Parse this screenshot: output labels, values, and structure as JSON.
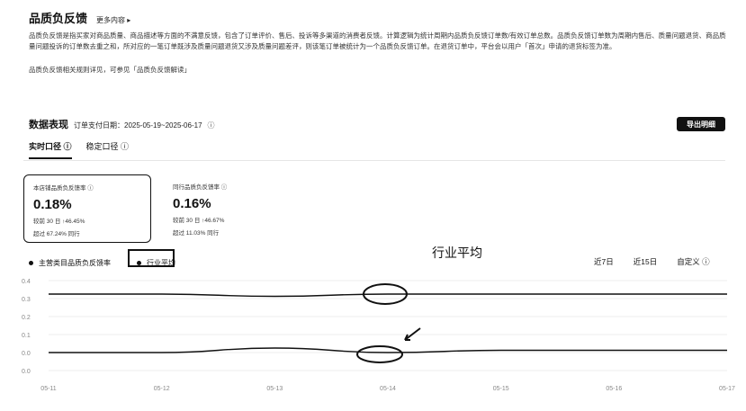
{
  "header": {
    "title": "品质负反馈",
    "more_label": "更多内容 ▸"
  },
  "description": "品质负反馈是指买家对商品质量、商品描述等方面的不满意反馈，包含了订单评价、售后、投诉等多渠道的消费者反馈。计算逻辑为统计周期内品质负反馈订单数/有效订单总数。品质负反馈订单数为周期内售后、质量问题退货、商品质量问题投诉的订单数去重之和，所对应的一笔订单既涉及质量问题退货又涉及质量问题差评，则该笔订单被统计为一个品质负反馈订单。在退货订单中，平台会以用户「首次」申请的退货标签为准。",
  "description_note": "品质负反馈相关规则详见，可参见「品质负反馈解读」",
  "section": {
    "title": "数据表现",
    "date_label": "订单支付日期：2025-05-19~2025-06-17",
    "info_icon": "ⓘ",
    "export_label": "导出明细"
  },
  "tabs": [
    {
      "label": "实时口径 ⓘ",
      "active": true
    },
    {
      "label": "稳定口径 ⓘ",
      "active": false
    }
  ],
  "cards": [
    {
      "label": "本店铺品质负反馈率 ⓘ",
      "value": "0.18%",
      "line1": "较前 30 日 ↑46.45%",
      "line2": "超过 67.24% 同行",
      "selected": true
    },
    {
      "label": "同行品质负反馈率 ⓘ",
      "value": "0.16%",
      "line1": "较前 30 日 ↑46.67%",
      "line2": "超过 11.03% 同行",
      "selected": false
    }
  ],
  "legend": [
    {
      "label": "主营类目品质负反馈率"
    },
    {
      "label": "行业平均"
    }
  ],
  "annotation_text": "行业平均",
  "ranges": [
    "近7日",
    "近15日",
    "自定义 ⓘ"
  ],
  "chart_data": {
    "type": "line",
    "x": [
      "05-11",
      "05-12",
      "05-13",
      "05-14",
      "05-15",
      "05-16",
      "05-17"
    ],
    "yticks": [
      "0.4",
      "0.3",
      "0.2",
      "0.1",
      "0.0",
      "0.0"
    ],
    "series": [
      {
        "name": "主营类目品质负反馈率",
        "values": [
          0.34,
          0.34,
          0.33,
          0.34,
          0.34,
          0.34,
          0.34
        ]
      },
      {
        "name": "行业平均",
        "values": [
          0.08,
          0.08,
          0.1,
          0.08,
          0.09,
          0.09,
          0.09
        ]
      }
    ],
    "ylim": [
      0,
      0.4
    ],
    "colors": {
      "line": "#111111",
      "grid": "#eeeeee",
      "axis": "#888888"
    }
  }
}
